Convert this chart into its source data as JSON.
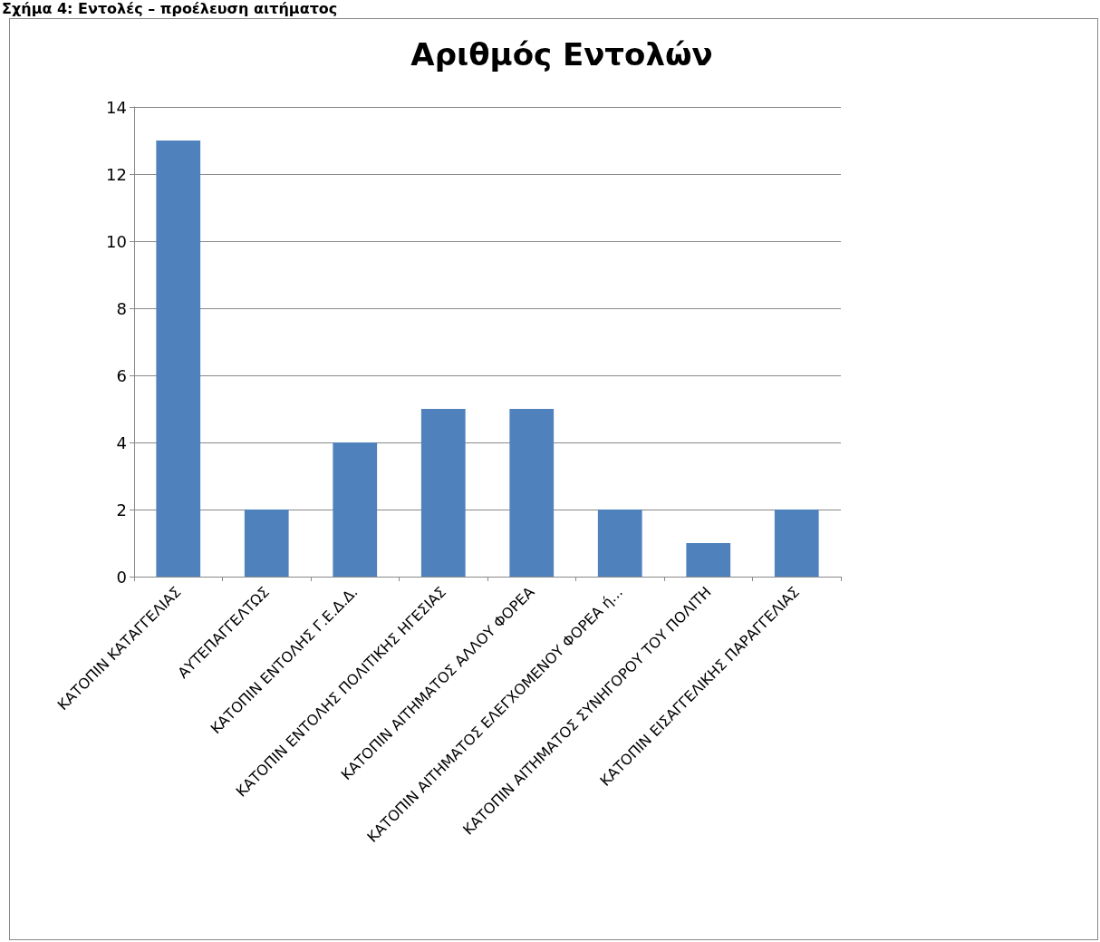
{
  "chart_data": {
    "type": "bar",
    "title": "Αριθμός Εντολών",
    "annotations": [
      "Σχήμα 4: Εντολές – προέλευση αιτήματος"
    ],
    "categories": [
      "ΚΑΤΟΠΙΝ ΚΑΤΑΓΓΕΛΙΑΣ",
      "ΑΥΤΕΠΑΓΓΕΛΤΩΣ",
      "ΚΑΤΟΠΙΝ ΕΝΤΟΛΗΣ Γ.Ε.Δ.Δ.",
      "ΚΑΤΟΠΙΝ ΕΝΤΟΛΗΣ ΠΟΛΙΤΙΚΗΣ ΗΓΕΣΙΑΣ",
      "ΚΑΤΟΠΙΝ ΑΙΤΗΜΑΤΟΣ ΑΛΛΟΥ ΦΟΡΕΑ",
      "ΚΑΤΟΠΙΝ ΑΙΤΗΜΑΤΟΣ ΕΛΕΓΧΟΜΕΝΟΥ ΦΟΡΕΑ ή...",
      "ΚΑΤΟΠΙΝ ΑΙΤΗΜΑΤΟΣ ΣΥΝΗΓΟΡΟΥ ΤΟΥ ΠΟΛΙΤΗ",
      "ΚΑΤΟΠΙΝ ΕΙΣΑΓΓΕΛΙΚΗΣ ΠΑΡΑΓΓΕΛΙΑΣ"
    ],
    "values": [
      13,
      2,
      4,
      5,
      5,
      2,
      1,
      2
    ],
    "color": "#4f81bd",
    "ylim": [
      0,
      14
    ],
    "yticks": [
      0,
      2,
      4,
      6,
      8,
      10,
      12,
      14
    ],
    "grid": "y"
  }
}
